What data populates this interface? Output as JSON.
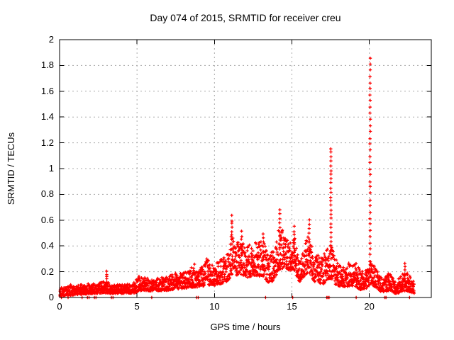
{
  "chart_data": {
    "type": "scatter",
    "title": "Day 074 of 2015, SRMTID for receiver creu",
    "xlabel": "GPS time / hours",
    "ylabel": "SRMTID / TECUs",
    "xlim": [
      0,
      24
    ],
    "ylim": [
      0,
      2
    ],
    "x_ticks": {
      "values": [
        0,
        5,
        10,
        15,
        20
      ],
      "labels": [
        "0",
        "5",
        "10",
        "15",
        "20"
      ]
    },
    "y_ticks": {
      "values": [
        0,
        0.2,
        0.4,
        0.6,
        0.8,
        1,
        1.2,
        1.4,
        1.6,
        1.8,
        2
      ],
      "labels": [
        "0",
        "0.2",
        "0.4",
        "0.6",
        "0.8",
        "1",
        "1.2",
        "1.4",
        "1.6",
        "1.8",
        "2"
      ]
    },
    "grid": "dashed",
    "grid_color": "#a8a8a8",
    "frame_color": "#000000",
    "text_color": "#000000",
    "marker": "plus",
    "marker_color": "#ff0000",
    "legend": null,
    "envelope_t_lo_hi": [
      [
        0.0,
        0.01,
        0.075
      ],
      [
        0.5,
        0.015,
        0.085
      ],
      [
        1.0,
        0.02,
        0.095
      ],
      [
        2.0,
        0.03,
        0.105
      ],
      [
        2.9,
        0.035,
        0.125
      ],
      [
        3.1,
        0.035,
        0.125
      ],
      [
        3.3,
        0.03,
        0.1
      ],
      [
        4.0,
        0.03,
        0.1
      ],
      [
        4.9,
        0.035,
        0.11
      ],
      [
        5.1,
        0.05,
        0.17
      ],
      [
        5.4,
        0.055,
        0.165
      ],
      [
        6.0,
        0.05,
        0.14
      ],
      [
        7.0,
        0.055,
        0.165
      ],
      [
        7.5,
        0.065,
        0.19
      ],
      [
        8.0,
        0.07,
        0.19
      ],
      [
        8.6,
        0.08,
        0.24
      ],
      [
        9.0,
        0.08,
        0.23
      ],
      [
        9.5,
        0.095,
        0.3
      ],
      [
        10.0,
        0.095,
        0.26
      ],
      [
        10.5,
        0.11,
        0.31
      ],
      [
        10.9,
        0.13,
        0.34
      ],
      [
        11.1,
        0.18,
        0.5
      ],
      [
        11.3,
        0.17,
        0.43
      ],
      [
        11.7,
        0.18,
        0.46
      ],
      [
        12.0,
        0.15,
        0.38
      ],
      [
        12.5,
        0.17,
        0.45
      ],
      [
        12.8,
        0.16,
        0.42
      ],
      [
        13.1,
        0.17,
        0.46
      ],
      [
        13.5,
        0.11,
        0.32
      ],
      [
        13.8,
        0.13,
        0.38
      ],
      [
        14.2,
        0.22,
        0.58
      ],
      [
        14.6,
        0.23,
        0.46
      ],
      [
        14.9,
        0.2,
        0.43
      ],
      [
        15.1,
        0.22,
        0.5
      ],
      [
        15.5,
        0.12,
        0.3
      ],
      [
        15.9,
        0.18,
        0.44
      ],
      [
        16.1,
        0.2,
        0.5
      ],
      [
        16.5,
        0.11,
        0.33
      ],
      [
        17.0,
        0.1,
        0.33
      ],
      [
        17.5,
        0.15,
        0.43
      ],
      [
        17.8,
        0.1,
        0.3
      ],
      [
        18.3,
        0.08,
        0.24
      ],
      [
        18.8,
        0.09,
        0.28
      ],
      [
        19.05,
        0.09,
        0.3
      ],
      [
        19.4,
        0.06,
        0.21
      ],
      [
        19.8,
        0.07,
        0.22
      ],
      [
        20.05,
        0.1,
        0.3
      ],
      [
        20.4,
        0.08,
        0.24
      ],
      [
        20.8,
        0.04,
        0.15
      ],
      [
        21.3,
        0.05,
        0.19
      ],
      [
        21.7,
        0.03,
        0.12
      ],
      [
        22.1,
        0.04,
        0.18
      ],
      [
        22.4,
        0.05,
        0.2
      ],
      [
        22.7,
        0.04,
        0.15
      ],
      [
        22.92,
        0.03,
        0.12
      ]
    ],
    "spikes_t_base_top_n": [
      [
        3.05,
        0.1,
        0.205,
        6
      ],
      [
        11.12,
        0.42,
        0.63,
        8
      ],
      [
        11.75,
        0.35,
        0.51,
        6
      ],
      [
        13.15,
        0.32,
        0.5,
        6
      ],
      [
        14.22,
        0.38,
        0.685,
        10
      ],
      [
        15.15,
        0.32,
        0.55,
        8
      ],
      [
        16.12,
        0.32,
        0.6,
        9
      ],
      [
        17.52,
        0.3,
        1.16,
        26
      ],
      [
        20.05,
        0.28,
        1.86,
        34
      ],
      [
        22.3,
        0.15,
        0.27,
        5
      ]
    ],
    "zero_value_times": [
      0.12,
      0.55,
      1.45,
      1.8,
      1.9,
      2.25,
      2.35,
      3.35,
      3.45,
      5.95,
      8.85,
      8.95,
      13.3,
      15.05,
      17.25,
      17.32,
      17.4,
      19.15,
      21.0,
      21.08,
      22.6
    ],
    "sampling": {
      "t_start": 0.02,
      "t_end": 22.9,
      "dt": 0.0095,
      "seed": 74,
      "bias": 1.45
    }
  }
}
